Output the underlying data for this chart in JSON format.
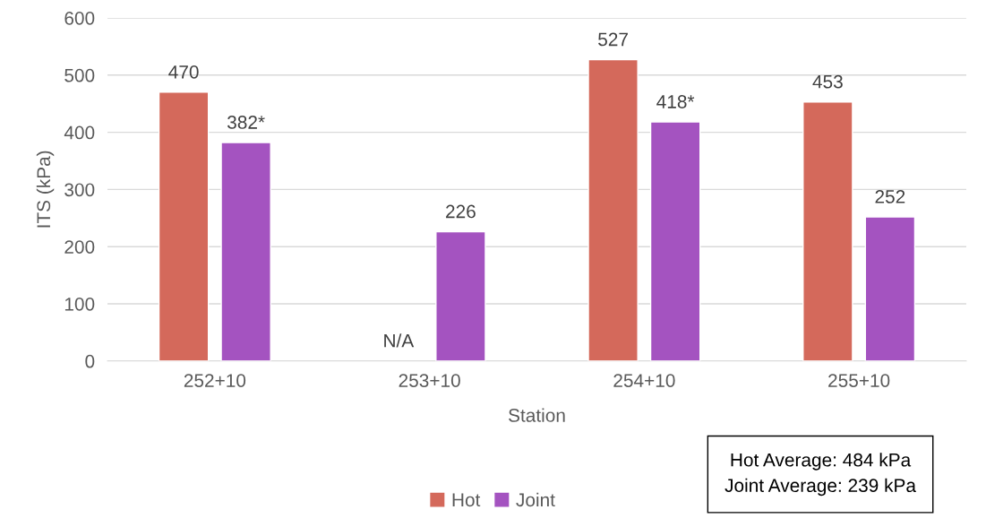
{
  "chart_data": {
    "type": "bar",
    "xlabel": "Station",
    "ylabel": "ITS (kPa)",
    "categories": [
      "252+10",
      "253+10",
      "254+10",
      "255+10"
    ],
    "series": [
      {
        "name": "Hot",
        "color": "#d4695b",
        "values": [
          470,
          null,
          527,
          453
        ],
        "value_labels": [
          "470",
          "N/A",
          "527",
          "453"
        ]
      },
      {
        "name": "Joint",
        "color": "#a453c0",
        "values": [
          382,
          226,
          418,
          252
        ],
        "value_labels": [
          "382*",
          "226",
          "418*",
          "252"
        ]
      }
    ],
    "ylim": [
      0,
      600
    ],
    "yticks": [
      0,
      100,
      200,
      300,
      400,
      500,
      600
    ],
    "grid": "y",
    "legend": "bottom",
    "annotations": [
      "Hot Average: 484 kPa",
      "Joint Average: 239 kPa"
    ]
  }
}
